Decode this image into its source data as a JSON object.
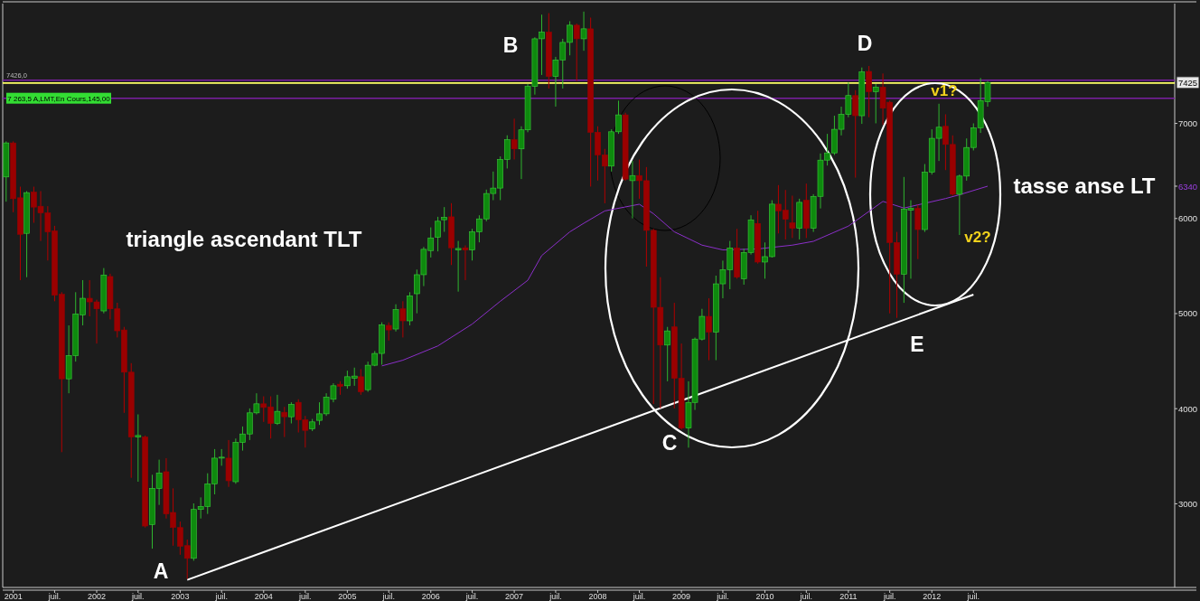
{
  "chart_data": {
    "type": "candlestick",
    "title": "triangle ascendant TLT",
    "subtitle": "tasse anse LT",
    "x": [
      "2000-12",
      "2001-01",
      "2001-02",
      "2001-03",
      "2001-04",
      "2001-05",
      "2001-06",
      "2001-07",
      "2001-08",
      "2001-09",
      "2001-10",
      "2001-11",
      "2001-12",
      "2002-01",
      "2002-02",
      "2002-03",
      "2002-04",
      "2002-05",
      "2002-06",
      "2002-07",
      "2002-08",
      "2002-09",
      "2002-10",
      "2002-11",
      "2002-12",
      "2003-01",
      "2003-02",
      "2003-03",
      "2003-04",
      "2003-05",
      "2003-06",
      "2003-07",
      "2003-08",
      "2003-09",
      "2003-10",
      "2003-11",
      "2003-12",
      "2004-01",
      "2004-02",
      "2004-03",
      "2004-04",
      "2004-05",
      "2004-06",
      "2004-07",
      "2004-08",
      "2004-09",
      "2004-10",
      "2004-11",
      "2004-12",
      "2005-01",
      "2005-02",
      "2005-03",
      "2005-04",
      "2005-05",
      "2005-06",
      "2005-07",
      "2005-08",
      "2005-09",
      "2005-10",
      "2005-11",
      "2005-12",
      "2006-01",
      "2006-02",
      "2006-03",
      "2006-04",
      "2006-05",
      "2006-06",
      "2006-07",
      "2006-08",
      "2006-09",
      "2006-10",
      "2006-11",
      "2006-12",
      "2007-01",
      "2007-02",
      "2007-03",
      "2007-04",
      "2007-05",
      "2007-06",
      "2007-07",
      "2007-08",
      "2007-09",
      "2007-10",
      "2007-11",
      "2007-12",
      "2008-01",
      "2008-02",
      "2008-03",
      "2008-04",
      "2008-05",
      "2008-06",
      "2008-07",
      "2008-08",
      "2008-09",
      "2008-10",
      "2008-11",
      "2008-12",
      "2009-01",
      "2009-02",
      "2009-03",
      "2009-04",
      "2009-05",
      "2009-06",
      "2009-07",
      "2009-08",
      "2009-09",
      "2009-10",
      "2009-11",
      "2009-12",
      "2010-01",
      "2010-02",
      "2010-03",
      "2010-04",
      "2010-05",
      "2010-06",
      "2010-07",
      "2010-08",
      "2010-09",
      "2010-10",
      "2010-11",
      "2010-12",
      "2011-01",
      "2011-02",
      "2011-03",
      "2011-04",
      "2011-05",
      "2011-06",
      "2011-07",
      "2011-08",
      "2011-09",
      "2011-10",
      "2011-11",
      "2011-12",
      "2012-01",
      "2012-02",
      "2012-03",
      "2012-04",
      "2012-05",
      "2012-06",
      "2012-07",
      "2012-08",
      "2012-09"
    ],
    "ohlc": [
      [
        6437,
        6811,
        6177,
        6795
      ],
      [
        6795,
        6811,
        6066,
        6208
      ],
      [
        6218,
        6335,
        5352,
        5834
      ],
      [
        5844,
        6288,
        5383,
        6272
      ],
      [
        6278,
        6335,
        5955,
        6120
      ],
      [
        6129,
        6288,
        5764,
        6059
      ],
      [
        6059,
        6129,
        5558,
        5859
      ],
      [
        5869,
        5923,
        5130,
        5193
      ],
      [
        5203,
        5225,
        3543,
        4314
      ],
      [
        4314,
        4876,
        4162,
        4559
      ],
      [
        4559,
        5225,
        4495,
        4996
      ],
      [
        4987,
        5352,
        4876,
        5161
      ],
      [
        5161,
        5352,
        4971,
        5123
      ],
      [
        5123,
        5146,
        4685,
        5050
      ],
      [
        5028,
        5479,
        5003,
        5406
      ],
      [
        5390,
        5420,
        4939,
        5050
      ],
      [
        5050,
        5114,
        4749,
        4819
      ],
      [
        4828,
        4860,
        3956,
        4384
      ],
      [
        4384,
        4479,
        3273,
        3702
      ],
      [
        3702,
        3940,
        3232,
        3718
      ],
      [
        3702,
        3718,
        2750,
        2766
      ],
      [
        2782,
        3305,
        2528,
        3162
      ],
      [
        3162,
        3464,
        2988,
        3321
      ],
      [
        3337,
        3480,
        2845,
        2893
      ],
      [
        2909,
        3162,
        2559,
        2750
      ],
      [
        2750,
        2813,
        2464,
        2553
      ],
      [
        2560,
        2623,
        2210,
        2426
      ],
      [
        2426,
        3004,
        2401,
        2940
      ],
      [
        2940,
        3067,
        2845,
        2972
      ],
      [
        2972,
        3321,
        2893,
        3210
      ],
      [
        3210,
        3575,
        3099,
        3480
      ],
      [
        3480,
        3575,
        3400,
        3490
      ],
      [
        3480,
        3670,
        3178,
        3242
      ],
      [
        3232,
        3686,
        3210,
        3645
      ],
      [
        3645,
        3813,
        3559,
        3734
      ],
      [
        3734,
        4003,
        3670,
        3956
      ],
      [
        3956,
        4162,
        3940,
        4051
      ],
      [
        4051,
        4130,
        3861,
        4013
      ],
      [
        4019,
        4130,
        3686,
        3845
      ],
      [
        3845,
        4146,
        3829,
        3972
      ],
      [
        3962,
        4019,
        3702,
        3915
      ],
      [
        3915,
        4067,
        3845,
        4045
      ],
      [
        4067,
        4099,
        3750,
        3883
      ],
      [
        3883,
        3924,
        3591,
        3772
      ],
      [
        3788,
        3892,
        3765,
        3861
      ],
      [
        3877,
        4067,
        3829,
        3946
      ],
      [
        3946,
        4162,
        3924,
        4121
      ],
      [
        4099,
        4267,
        4067,
        4241
      ],
      [
        4257,
        4289,
        4146,
        4235
      ],
      [
        4241,
        4400,
        4210,
        4336
      ],
      [
        4320,
        4432,
        4241,
        4343
      ],
      [
        4336,
        4416,
        4146,
        4178
      ],
      [
        4200,
        4495,
        4178,
        4457
      ],
      [
        4457,
        4606,
        4447,
        4581
      ],
      [
        4581,
        4908,
        4463,
        4882
      ],
      [
        4876,
        4908,
        4717,
        4828
      ],
      [
        4838,
        5098,
        4812,
        5041
      ],
      [
        5050,
        5130,
        4749,
        4924
      ],
      [
        4924,
        5225,
        4876,
        5187
      ],
      [
        5209,
        5463,
        5003,
        5409
      ],
      [
        5409,
        5701,
        5289,
        5676
      ],
      [
        5663,
        5907,
        5590,
        5796
      ],
      [
        5803,
        6018,
        5654,
        5971
      ],
      [
        5987,
        6120,
        5860,
        6012
      ],
      [
        6018,
        6161,
        5511,
        5692
      ],
      [
        5669,
        5764,
        5231,
        5685
      ],
      [
        5692,
        5717,
        5352,
        5669
      ],
      [
        5669,
        5891,
        5558,
        5860
      ],
      [
        5860,
        6034,
        5749,
        5996
      ],
      [
        5996,
        6304,
        5971,
        6263
      ],
      [
        6263,
        6494,
        6193,
        6320
      ],
      [
        6320,
        6653,
        6193,
        6621
      ],
      [
        6621,
        6875,
        6526,
        6828
      ],
      [
        6828,
        7050,
        6621,
        6732
      ],
      [
        6732,
        6970,
        6415,
        6932
      ],
      [
        6932,
        7415,
        6907,
        7389
      ],
      [
        7389,
        7906,
        7303,
        7890
      ],
      [
        7890,
        8144,
        7510,
        7960
      ],
      [
        7960,
        8160,
        7367,
        7494
      ],
      [
        7494,
        7700,
        7177,
        7668
      ],
      [
        7668,
        7890,
        7367,
        7852
      ],
      [
        7852,
        8075,
        7716,
        8033
      ],
      [
        8033,
        8049,
        7446,
        7890
      ],
      [
        7890,
        8176,
        7764,
        7995
      ],
      [
        7995,
        8113,
        6336,
        6907
      ],
      [
        6907,
        6970,
        6399,
        6669
      ],
      [
        6668,
        6732,
        6160,
        6551
      ],
      [
        6551,
        6938,
        6494,
        6912
      ],
      [
        6912,
        7239,
        6890,
        7090
      ],
      [
        7090,
        7112,
        6398,
        6414
      ],
      [
        6398,
        6605,
        6002,
        6452
      ],
      [
        6452,
        6620,
        6208,
        6398
      ],
      [
        6398,
        6541,
        5494,
        5875
      ],
      [
        5875,
        5891,
        4050,
        5066
      ],
      [
        5066,
        5383,
        4003,
        4669
      ],
      [
        4669,
        4860,
        4288,
        4818
      ],
      [
        4860,
        5113,
        4003,
        4320
      ],
      [
        4320,
        4685,
        3780,
        3796
      ],
      [
        3796,
        4288,
        3590,
        4066
      ],
      [
        4066,
        4748,
        3987,
        4732
      ],
      [
        4732,
        5050,
        4717,
        4971
      ],
      [
        4971,
        5161,
        4510,
        4806
      ],
      [
        4806,
        5399,
        4510,
        5313
      ],
      [
        5313,
        5557,
        5161,
        5462
      ],
      [
        5462,
        5764,
        5256,
        5691
      ],
      [
        5691,
        5891,
        5367,
        5383
      ],
      [
        5367,
        5684,
        5304,
        5643
      ],
      [
        5643,
        6034,
        5621,
        5986
      ],
      [
        5948,
        6081,
        5526,
        5542
      ],
      [
        5542,
        5748,
        5367,
        5599
      ],
      [
        5599,
        6192,
        5589,
        6151
      ],
      [
        6151,
        6351,
        5843,
        6081
      ],
      [
        6087,
        6300,
        5780,
        5992
      ],
      [
        5954,
        6240,
        5795,
        5897
      ],
      [
        5897,
        6208,
        5780,
        6170
      ],
      [
        6192,
        6367,
        5795,
        5897
      ],
      [
        5897,
        6256,
        5859,
        6233
      ],
      [
        6233,
        6684,
        6106,
        6614
      ],
      [
        6614,
        6890,
        6557,
        6690
      ],
      [
        6690,
        7081,
        6668,
        6938
      ],
      [
        6938,
        7176,
        6874,
        7096
      ],
      [
        7096,
        7430,
        7065,
        7293
      ],
      [
        7293,
        7350,
        6430,
        7081
      ],
      [
        7081,
        7588,
        6995,
        7541
      ],
      [
        7547,
        7604,
        7065,
        7334
      ],
      [
        7334,
        7414,
        7001,
        7382
      ],
      [
        7382,
        7525,
        6985,
        7160
      ],
      [
        7223,
        7239,
        5002,
        5748
      ],
      [
        5748,
        5859,
        4955,
        5415
      ],
      [
        5415,
        6437,
        5113,
        6097
      ],
      [
        6087,
        6192,
        5367,
        6106
      ],
      [
        6106,
        6145,
        5573,
        5884
      ],
      [
        5884,
        6573,
        5859,
        6487
      ],
      [
        6487,
        6938,
        6462,
        6843
      ],
      [
        6843,
        7207,
        6605,
        6960
      ],
      [
        6970,
        7096,
        6509,
        6779
      ],
      [
        6779,
        6874,
        6240,
        6255
      ],
      [
        6255,
        6462,
        5827,
        6446
      ],
      [
        6446,
        6842,
        6398,
        6747
      ],
      [
        6747,
        7001,
        6716,
        6954
      ],
      [
        6954,
        7477,
        6900,
        7239
      ],
      [
        7230,
        7446,
        7176,
        7430
      ]
    ],
    "series": [
      {
        "type": "line",
        "color": "#8b2fc9",
        "x": [
          "2005-06",
          "2005-09",
          "2006-02",
          "2006-07",
          "2006-11",
          "2007-03",
          "2007-05",
          "2007-09",
          "2007-11",
          "2008-02",
          "2008-07",
          "2008-09",
          "2008-12",
          "2009-04",
          "2009-07",
          "2009-12",
          "2010-05",
          "2010-08",
          "2011-01",
          "2011-06",
          "2011-09",
          "2012-03",
          "2012-05",
          "2012-09"
        ],
        "values": [
          4450,
          4510,
          4660,
          4890,
          5130,
          5350,
          5610,
          5860,
          5950,
          6080,
          6150,
          6050,
          5860,
          5720,
          5670,
          5680,
          5720,
          5760,
          5920,
          6180,
          6110,
          6210,
          6250,
          6340
        ]
      },
      {
        "type": "line",
        "color": "#ffffff",
        "x": [
          "2003-02",
          "2012-07"
        ],
        "values": [
          2200,
          5200
        ]
      }
    ],
    "xlim": [
      "2000-11-16",
      "2014-11-28"
    ],
    "xticks": [
      {
        "value": "2001-01",
        "label": "2001"
      },
      {
        "value": "2001-07",
        "label": "juil."
      },
      {
        "value": "2002-01",
        "label": "2002"
      },
      {
        "value": "2002-07",
        "label": "juil."
      },
      {
        "value": "2003-01",
        "label": "2003"
      },
      {
        "value": "2003-07",
        "label": "juil."
      },
      {
        "value": "2004-01",
        "label": "2004"
      },
      {
        "value": "2004-07",
        "label": "juil."
      },
      {
        "value": "2005-01",
        "label": "2005"
      },
      {
        "value": "2005-07",
        "label": "juil."
      },
      {
        "value": "2006-01",
        "label": "2006"
      },
      {
        "value": "2006-07",
        "label": "juil."
      },
      {
        "value": "2007-01",
        "label": "2007"
      },
      {
        "value": "2007-07",
        "label": "juil."
      },
      {
        "value": "2008-01",
        "label": "2008"
      },
      {
        "value": "2008-07",
        "label": "juil."
      },
      {
        "value": "2009-01",
        "label": "2009"
      },
      {
        "value": "2009-07",
        "label": "juil."
      },
      {
        "value": "2010-01",
        "label": "2010"
      },
      {
        "value": "2010-07",
        "label": "juil."
      },
      {
        "value": "2011-01",
        "label": "2011"
      },
      {
        "value": "2011-07",
        "label": "juil."
      },
      {
        "value": "2012-01",
        "label": "2012"
      },
      {
        "value": "2012-07",
        "label": "juil."
      }
    ],
    "ylim": [
      2120,
      8260
    ],
    "yticks": [
      3000,
      4000,
      5000,
      6000,
      {
        "value": 6340,
        "label": "6340"
      },
      7000
    ],
    "ref_lines": [
      {
        "axis": "y",
        "value": 7455,
        "color": "#7a1fa2"
      },
      {
        "axis": "y",
        "value": 7425,
        "label": "7425",
        "color": "#ffff66"
      },
      {
        "axis": "y",
        "value": 7265,
        "label": "7 263,5 A,LMT,En Cours,145,00",
        "color": "#7a1fa2"
      }
    ],
    "annotations": [
      "7426,0",
      "A",
      "B",
      "C",
      "D",
      "E",
      "v1?",
      "v2?"
    ],
    "grid": false
  }
}
